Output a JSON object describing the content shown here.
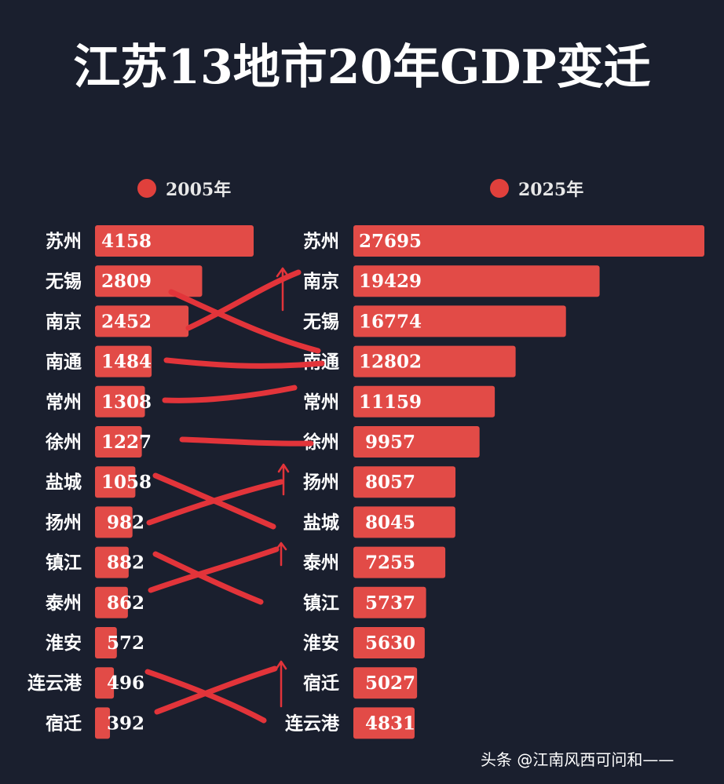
{
  "title": "江苏13地市20年GDP变迁",
  "watermark": "头条 @江南风西可问和——",
  "colors": {
    "background": "#1a1f2e",
    "bar": "#e24b47",
    "legend_dot": "#e0403c",
    "annotation": "#e2343a",
    "text": "#ffffff"
  },
  "chart_data": [
    {
      "type": "bar",
      "orientation": "horizontal",
      "legend": "2005年",
      "categories": [
        "苏州",
        "无锡",
        "南京",
        "南通",
        "常州",
        "徐州",
        "盐城",
        "扬州",
        "镇江",
        "泰州",
        "淮安",
        "连云港",
        "宿迁"
      ],
      "values": [
        4158,
        2809,
        2452,
        1484,
        1308,
        1227,
        1058,
        982,
        882,
        862,
        572,
        496,
        392
      ],
      "grid": false
    },
    {
      "type": "bar",
      "orientation": "horizontal",
      "legend": "2025年",
      "categories": [
        "苏州",
        "南京",
        "无锡",
        "南通",
        "常州",
        "徐州",
        "扬州",
        "盐城",
        "泰州",
        "镇江",
        "淮安",
        "宿迁",
        "连云港"
      ],
      "values": [
        27695,
        19429,
        16774,
        12802,
        11159,
        9957,
        8057,
        8045,
        7255,
        5737,
        5630,
        5027,
        4831
      ],
      "grid": false
    }
  ]
}
